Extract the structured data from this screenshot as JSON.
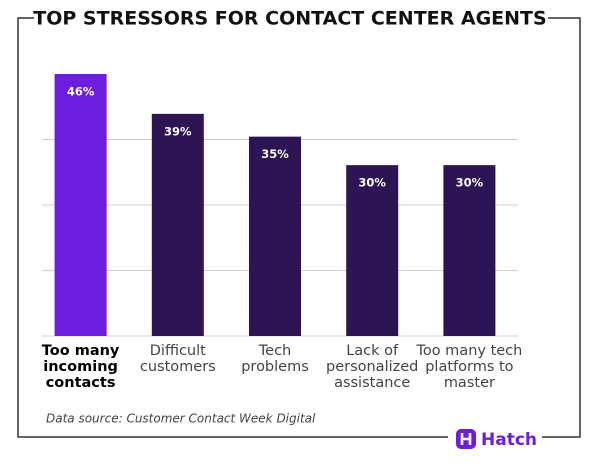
{
  "chart_data": {
    "type": "bar",
    "title": "TOP STRESSORS FOR CONTACT CENTER AGENTS",
    "categories": [
      "Too many incoming contacts",
      "Difficult customers",
      "Tech problems",
      "Lack of personalized assistance",
      "Too many tech platforms to master"
    ],
    "values": [
      46,
      39,
      35,
      30,
      30
    ],
    "value_labels": [
      "46%",
      "39%",
      "35%",
      "30%",
      "30%"
    ],
    "colors": [
      "#6b1ee0",
      "#2c1455",
      "#2c1455",
      "#2c1455",
      "#2c1455"
    ],
    "highlight_index": 0,
    "ylim": [
      0,
      46
    ],
    "yticks": [
      0,
      11.5,
      23,
      34.5
    ],
    "grid": true,
    "source": "Data source: Customer Contact Week Digital"
  },
  "brand": {
    "name": "Hatch",
    "color": "#6b1ee0"
  }
}
